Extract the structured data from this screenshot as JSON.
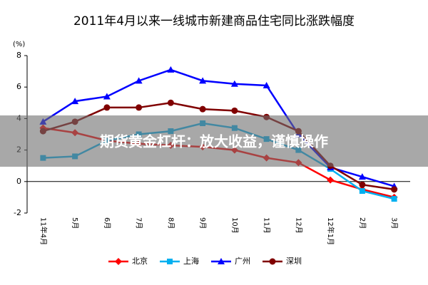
{
  "chart_data": {
    "type": "line",
    "title": "2011年4月以来一线城市新建商品住宅同比涨跌幅度",
    "y_label": "(%)",
    "categories": [
      "11年4月",
      "5月",
      "6月",
      "7月",
      "8月",
      "9月",
      "10月",
      "11月",
      "12月",
      "12年1月",
      "2月",
      "3月"
    ],
    "series": [
      {
        "name": "北京",
        "color": "#ff0000",
        "marker": "diamond",
        "values": [
          3.4,
          3.1,
          2.6,
          2.4,
          2.3,
          2.2,
          2.0,
          1.5,
          1.2,
          0.1,
          -0.5,
          -1.0
        ]
      },
      {
        "name": "上海",
        "color": "#00b0f0",
        "marker": "square",
        "values": [
          1.5,
          1.6,
          2.6,
          3.0,
          3.2,
          3.7,
          3.4,
          2.7,
          2.0,
          0.8,
          -0.6,
          -1.1
        ]
      },
      {
        "name": "广州",
        "color": "#0000ff",
        "marker": "triangle",
        "values": [
          3.8,
          5.1,
          5.4,
          6.4,
          7.1,
          6.4,
          6.2,
          6.1,
          3.0,
          0.9,
          0.3,
          -0.3
        ]
      },
      {
        "name": "深圳",
        "color": "#800000",
        "marker": "circle",
        "values": [
          3.2,
          3.8,
          4.7,
          4.7,
          5.0,
          4.6,
          4.5,
          4.1,
          3.2,
          1.0,
          -0.2,
          -0.5
        ]
      }
    ],
    "ylim": [
      -2,
      8
    ],
    "yticks": [
      -2,
      0,
      2,
      4,
      6,
      8
    ],
    "grid": false,
    "legend": "bottom"
  },
  "overlay_text": "期货黄金杠杆：放大收益，谨慎操作"
}
